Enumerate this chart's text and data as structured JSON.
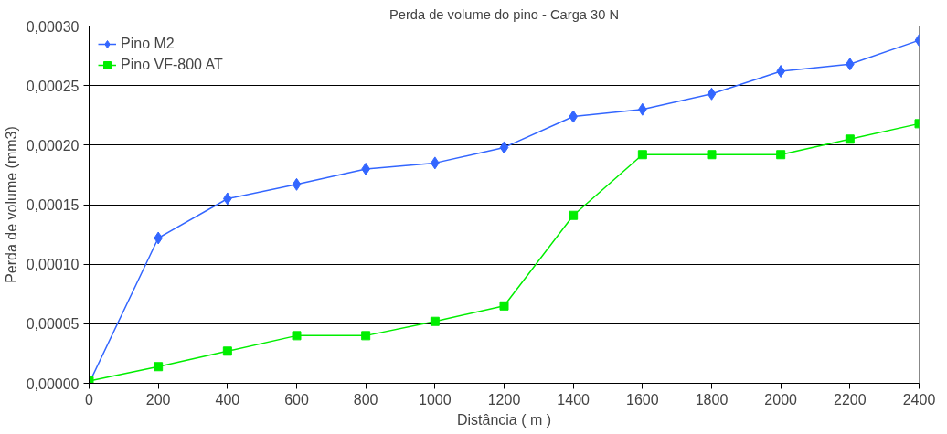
{
  "chart_data": {
    "type": "line",
    "title": "Perda de volume do pino - Carga 30 N",
    "xlabel": "Distância ( m )",
    "ylabel": "Perda de volume (mm3)",
    "x": [
      0,
      200,
      400,
      600,
      800,
      1000,
      1200,
      1400,
      1600,
      1800,
      2000,
      2200,
      2400
    ],
    "series": [
      {
        "name": "Pino M2",
        "color": "#3366ff",
        "marker": "diamond",
        "values": [
          0,
          0.000122,
          0.000155,
          0.000167,
          0.00018,
          0.000185,
          0.000198,
          0.000224,
          0.00023,
          0.000243,
          0.000262,
          0.000268,
          0.000288
        ]
      },
      {
        "name": "Pino VF-800 AT",
        "color": "#00ee00",
        "marker": "square",
        "values": [
          2e-06,
          1.4e-05,
          2.7e-05,
          4e-05,
          4e-05,
          5.2e-05,
          6.5e-05,
          0.000141,
          0.000192,
          0.000192,
          0.000192,
          0.000205,
          0.000218
        ]
      }
    ],
    "xlim": [
      0,
      2400
    ],
    "xticks": [
      0,
      200,
      400,
      600,
      800,
      1000,
      1200,
      1400,
      1600,
      1800,
      2000,
      2200,
      2400
    ],
    "ylim": [
      0,
      0.0003
    ],
    "yticks": [
      {
        "value": 0,
        "label": "0,00000"
      },
      {
        "value": 5e-05,
        "label": "0,00005"
      },
      {
        "value": 0.0001,
        "label": "0,00010"
      },
      {
        "value": 0.00015,
        "label": "0,00015"
      },
      {
        "value": 0.0002,
        "label": "0,00020"
      },
      {
        "value": 0.00025,
        "label": "0,00025"
      },
      {
        "value": 0.0003,
        "label": "0,00030"
      }
    ],
    "grid": "y",
    "legend": "top left"
  }
}
